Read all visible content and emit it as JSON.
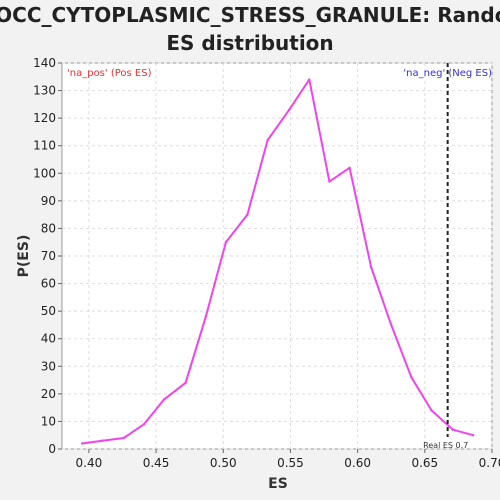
{
  "chart_data": {
    "type": "line",
    "title_line1": "GOCC_CYTOPLASMIC_STRESS_GRANULE: Random",
    "title_line2": "ES distribution",
    "xlabel": "ES",
    "ylabel": "P(ES)",
    "xlim": [
      0.38,
      0.7
    ],
    "ylim": [
      0,
      140
    ],
    "x_ticks": [
      "0.40",
      "0.45",
      "0.50",
      "0.55",
      "0.60",
      "0.65",
      "0.70"
    ],
    "x_tick_values": [
      0.4,
      0.45,
      0.5,
      0.55,
      0.6,
      0.65,
      0.7
    ],
    "y_ticks": [
      "0",
      "10",
      "20",
      "30",
      "40",
      "50",
      "60",
      "70",
      "80",
      "90",
      "100",
      "110",
      "120",
      "130",
      "140"
    ],
    "y_tick_values": [
      0,
      10,
      20,
      30,
      40,
      50,
      60,
      70,
      80,
      90,
      100,
      110,
      120,
      130,
      140
    ],
    "grid": true,
    "series": [
      {
        "color": "#ee44ee",
        "x": [
          0.395,
          0.41,
          0.426,
          0.441,
          0.456,
          0.472,
          0.487,
          0.502,
          0.518,
          0.533,
          0.549,
          0.564,
          0.579,
          0.594,
          0.61,
          0.625,
          0.64,
          0.655,
          0.671,
          0.686
        ],
        "y": [
          2,
          3,
          4,
          9,
          18,
          24,
          48,
          75,
          85,
          112,
          123,
          134,
          97,
          102,
          66,
          45,
          26,
          14,
          7,
          5
        ]
      }
    ],
    "corner_label_left": "'na_pos' (Pos ES)",
    "corner_label_left_color": "#dd3333",
    "corner_label_right": "'na_neg' (Neg ES)",
    "corner_label_right_color": "#3333cc",
    "real_es": {
      "value": 0.667,
      "label": "Real ES 0.7",
      "color": "#222222"
    },
    "line_color": "#ee44ee",
    "plot_background": "#ffffff",
    "grid_color": "#dddddd"
  }
}
